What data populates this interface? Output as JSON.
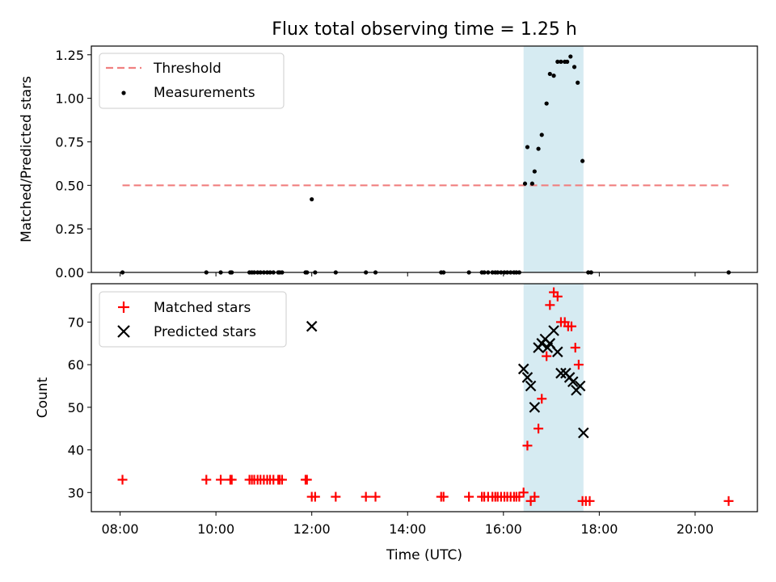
{
  "chart_data": {
    "title": "Flux total observing time = 1.25 h",
    "xlabel": "Time (UTC)",
    "x_unit": "hours UTC",
    "xlim": [
      7.4,
      21.3
    ],
    "x_ticks": [
      8,
      10,
      12,
      14,
      16,
      18,
      20
    ],
    "x_tick_labels": [
      "08:00",
      "10:00",
      "12:00",
      "14:00",
      "16:00",
      "18:00",
      "20:00"
    ],
    "highlight_span": {
      "x": [
        16.42,
        17.67
      ],
      "color": "#add8e6"
    },
    "panels": [
      {
        "type": "scatter",
        "ylabel": "Matched/Predicted stars",
        "ylim": [
          0,
          1.3
        ],
        "y_ticks": [
          0,
          0.25,
          0.5,
          0.75,
          1.0,
          1.25
        ],
        "y_tick_labels": [
          "0.00",
          "0.25",
          "0.50",
          "0.75",
          "1.00",
          "1.25"
        ],
        "legend": "top-left",
        "threshold": {
          "name": "Threshold",
          "value": 0.5,
          "x": [
            8.05,
            20.7
          ],
          "color": "#f08080"
        },
        "series": [
          {
            "name": "Measurements",
            "marker": "dot",
            "color": "#000000",
            "x": [
              8.05,
              9.8,
              10.1,
              10.3,
              10.33,
              10.7,
              10.75,
              10.8,
              10.87,
              10.93,
              11.0,
              11.07,
              11.13,
              11.2,
              11.3,
              11.33,
              11.38,
              11.87,
              11.9,
              12.0,
              12.07,
              12.5,
              13.13,
              13.33,
              14.7,
              14.75,
              15.28,
              15.55,
              15.6,
              15.68,
              15.77,
              15.83,
              15.88,
              15.95,
              16.02,
              16.08,
              16.15,
              16.22,
              16.27,
              16.33,
              16.45,
              16.5,
              16.6,
              16.65,
              16.73,
              16.8,
              16.9,
              16.97,
              17.05,
              17.13,
              17.2,
              17.28,
              17.33,
              17.4,
              17.48,
              17.55,
              17.65,
              17.77,
              17.83,
              20.7
            ],
            "y": [
              0,
              0,
              0,
              0,
              0,
              0,
              0,
              0,
              0,
              0,
              0,
              0,
              0,
              0,
              0,
              0,
              0,
              0,
              0,
              0.42,
              0,
              0,
              0,
              0,
              0,
              0,
              0,
              0,
              0,
              0,
              0,
              0,
              0,
              0,
              0,
              0,
              0,
              0,
              0,
              0,
              0.51,
              0.72,
              0.51,
              0.58,
              0.71,
              0.79,
              0.97,
              1.14,
              1.13,
              1.21,
              1.21,
              1.21,
              1.21,
              1.24,
              1.18,
              1.09,
              0.64,
              0,
              0,
              0
            ]
          }
        ]
      },
      {
        "type": "scatter",
        "ylabel": "Count",
        "ylim": [
          25.5,
          79
        ],
        "y_ticks": [
          30,
          40,
          50,
          60,
          70
        ],
        "y_tick_labels": [
          "30",
          "40",
          "50",
          "60",
          "70"
        ],
        "legend": "top-left",
        "series": [
          {
            "name": "Matched stars",
            "marker": "plus",
            "color": "#ff0000",
            "x": [
              8.05,
              9.8,
              10.1,
              10.3,
              10.33,
              10.7,
              10.75,
              10.8,
              10.87,
              10.93,
              11.0,
              11.07,
              11.13,
              11.2,
              11.3,
              11.33,
              11.38,
              11.87,
              11.9,
              12.0,
              12.07,
              12.5,
              13.13,
              13.33,
              14.7,
              14.75,
              15.28,
              15.55,
              15.6,
              15.68,
              15.77,
              15.83,
              15.88,
              15.95,
              16.02,
              16.08,
              16.15,
              16.22,
              16.27,
              16.33,
              16.42,
              16.5,
              16.57,
              16.65,
              16.73,
              16.8,
              16.9,
              16.97,
              17.05,
              17.13,
              17.2,
              17.28,
              17.35,
              17.42,
              17.5,
              17.57,
              17.65,
              17.72,
              17.8,
              20.7
            ],
            "y": [
              33,
              33,
              33,
              33,
              33,
              33,
              33,
              33,
              33,
              33,
              33,
              33,
              33,
              33,
              33,
              33,
              33,
              33,
              33,
              29,
              29,
              29,
              29,
              29,
              29,
              29,
              29,
              29,
              29,
              29,
              29,
              29,
              29,
              29,
              29,
              29,
              29,
              29,
              29,
              29,
              30,
              41,
              28,
              29,
              45,
              52,
              62,
              74,
              77,
              76,
              70,
              70,
              69,
              69,
              64,
              60,
              28,
              28,
              28,
              28
            ]
          },
          {
            "name": "Predicted stars",
            "marker": "x",
            "color": "#000000",
            "x": [
              12.0,
              16.42,
              16.5,
              16.57,
              16.65,
              16.73,
              16.8,
              16.87,
              16.92,
              16.97,
              17.05,
              17.13,
              17.2,
              17.3,
              17.38,
              17.45,
              17.52,
              17.6,
              17.67
            ],
            "y": [
              69,
              59,
              57,
              55,
              50,
              64,
              65,
              66,
              64,
              65,
              68,
              63,
              58,
              58,
              57,
              56,
              54,
              55,
              44
            ]
          }
        ]
      }
    ]
  }
}
